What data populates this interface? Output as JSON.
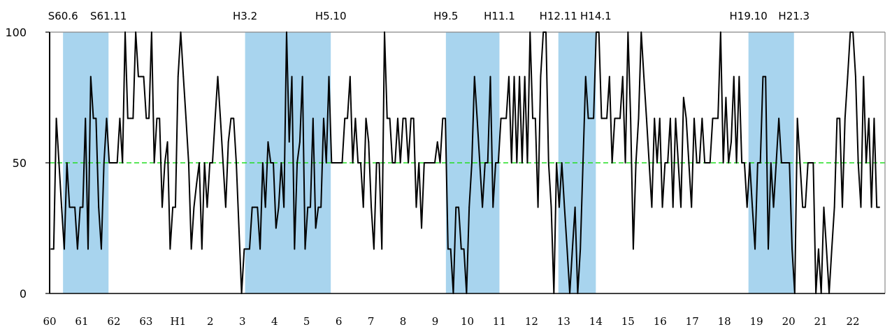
{
  "chart_data": {
    "type": "line",
    "title": "",
    "xlabel": "",
    "ylabel": "",
    "ylim": [
      0,
      100
    ],
    "y_ticks": [
      0,
      50,
      100
    ],
    "reference_line": {
      "value": 50,
      "color": "#22dd22",
      "style": "dashed"
    },
    "x_tick_labels": [
      "60",
      "61",
      "62",
      "63",
      "H1",
      "2",
      "3",
      "4",
      "5",
      "6",
      "7",
      "8",
      "9",
      "10",
      "11",
      "12",
      "13",
      "14",
      "15",
      "16",
      "17",
      "18",
      "19",
      "20",
      "21",
      "22"
    ],
    "shading_color": "#a8d4ee",
    "recession_periods": [
      {
        "start_label": "S60.6",
        "end_label": "S61.11",
        "start_month": 5,
        "end_month": 22
      },
      {
        "start_label": "H3.2",
        "end_label": "H5.10",
        "start_month": 73,
        "end_month": 105
      },
      {
        "start_label": "H9.5",
        "end_label": "H11.1",
        "start_month": 148,
        "end_month": 168
      },
      {
        "start_label": "H12.11",
        "end_label": "H14.1",
        "start_month": 190,
        "end_month": 204
      },
      {
        "start_label": "H19.10",
        "end_label": "H21.3",
        "start_month": 261,
        "end_month": 278
      }
    ],
    "series": [
      {
        "values": [
          17,
          17,
          67,
          50,
          33,
          17,
          50,
          33,
          33,
          33,
          17,
          33,
          33,
          67,
          17,
          83,
          67,
          67,
          33,
          17,
          50,
          67,
          50,
          50,
          50,
          50,
          67,
          50,
          100,
          67,
          67,
          67,
          100,
          83,
          83,
          83,
          67,
          67,
          100,
          50,
          67,
          67,
          33,
          50,
          58,
          17,
          33,
          33,
          83,
          100,
          83,
          67,
          50,
          17,
          33,
          42,
          50,
          17,
          50,
          33,
          50,
          50,
          67,
          83,
          67,
          50,
          33,
          58,
          67,
          67,
          50,
          25,
          0,
          17,
          17,
          17,
          33,
          33,
          33,
          17,
          50,
          33,
          58,
          50,
          50,
          25,
          33,
          50,
          33,
          100,
          58,
          83,
          17,
          50,
          58,
          83,
          17,
          33,
          33,
          67,
          25,
          33,
          33,
          67,
          50,
          83,
          50,
          50,
          50,
          50,
          50,
          67,
          67,
          83,
          50,
          67,
          50,
          50,
          33,
          67,
          58,
          33,
          17,
          50,
          50,
          17,
          100,
          67,
          67,
          50,
          50,
          67,
          50,
          67,
          67,
          50,
          67,
          67,
          33,
          50,
          25,
          50,
          50,
          50,
          50,
          50,
          58,
          50,
          67,
          67,
          17,
          17,
          0,
          33,
          33,
          17,
          17,
          0,
          33,
          50,
          83,
          67,
          50,
          33,
          50,
          50,
          83,
          33,
          50,
          50,
          67,
          67,
          67,
          83,
          50,
          83,
          50,
          83,
          50,
          83,
          50,
          100,
          67,
          67,
          33,
          83,
          100,
          100,
          50,
          33,
          0,
          50,
          33,
          50,
          33,
          17,
          0,
          17,
          33,
          0,
          17,
          50,
          83,
          67,
          67,
          67,
          100,
          100,
          67,
          67,
          67,
          83,
          50,
          67,
          67,
          67,
          83,
          50,
          100,
          67,
          17,
          50,
          67,
          100,
          83,
          67,
          50,
          33,
          67,
          50,
          67,
          33,
          50,
          50,
          67,
          33,
          67,
          50,
          33,
          75,
          67,
          50,
          33,
          67,
          50,
          50,
          67,
          50,
          50,
          50,
          67,
          67,
          67,
          100,
          50,
          75,
          50,
          58,
          83,
          50,
          83,
          50,
          50,
          33,
          50,
          33,
          17,
          50,
          50,
          83,
          83,
          17,
          50,
          33,
          50,
          67,
          50,
          50,
          50,
          50,
          17,
          0,
          67,
          50,
          33,
          33,
          50,
          50,
          50,
          0,
          17,
          0,
          33,
          17,
          0,
          17,
          33,
          67,
          67,
          33,
          67,
          83,
          100,
          100,
          83,
          50,
          33,
          83,
          50,
          67,
          33,
          67,
          33,
          33
        ]
      }
    ]
  }
}
